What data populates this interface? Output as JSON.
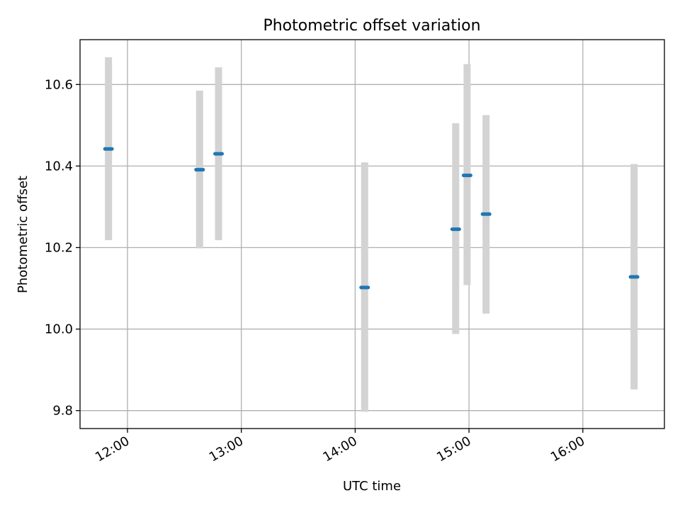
{
  "chart_data": {
    "type": "scatter",
    "title": "Photometric offset variation",
    "xlabel": "UTC time",
    "ylabel": "Photometric offset",
    "grid": true,
    "legend": "none",
    "xlim": [
      "11:35",
      "16:43"
    ],
    "ylim": [
      9.756,
      10.71
    ],
    "x_ticks": [
      "12:00",
      "13:00",
      "14:00",
      "15:00",
      "16:00"
    ],
    "y_ticks": [
      "9.8",
      "10.0",
      "10.2",
      "10.4",
      "10.6"
    ],
    "colors": {
      "point": "#1f77b4",
      "error_bar": "#d3d3d3",
      "grid": "#b0b0b0",
      "axes": "#000000"
    },
    "series": [
      {
        "x": [
          "11:50",
          "12:38",
          "12:48",
          "14:05",
          "14:53",
          "14:59",
          "15:09",
          "16:27"
        ],
        "y": [
          10.442,
          10.391,
          10.43,
          10.102,
          10.245,
          10.377,
          10.282,
          10.128
        ],
        "y_low": [
          10.218,
          10.198,
          10.218,
          9.797,
          9.988,
          10.108,
          10.038,
          9.852
        ],
        "y_high": [
          10.667,
          10.585,
          10.642,
          10.409,
          10.505,
          10.65,
          10.525,
          10.405
        ]
      }
    ]
  }
}
